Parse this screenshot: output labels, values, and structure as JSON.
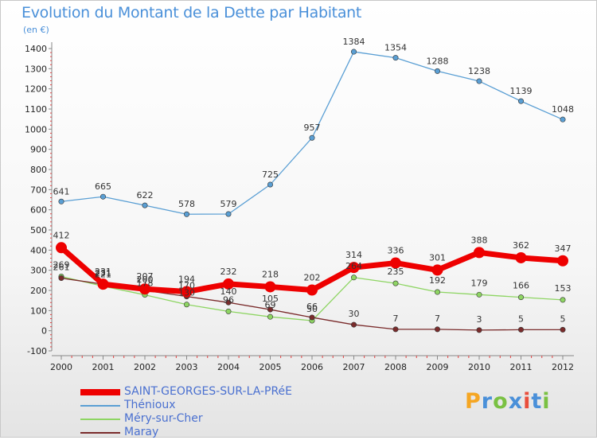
{
  "header": {
    "title": "Evolution du Montant de la Dette par Habitant",
    "unit": "(en €)"
  },
  "logo": {
    "letters": [
      "P",
      "r",
      "o",
      "x",
      "i",
      "t",
      "i"
    ],
    "colors": [
      "#f5a623",
      "#4a90d9",
      "#7ac143",
      "#4a90d9",
      "#e94e3c",
      "#4a90d9",
      "#7ac143"
    ]
  },
  "chart_data": {
    "type": "line",
    "title": "Evolution du Montant de la Dette par Habitant",
    "subtitle": "(en €)",
    "xlabel": "",
    "ylabel": "",
    "x": [
      2000,
      2001,
      2002,
      2003,
      2004,
      2005,
      2006,
      2007,
      2008,
      2009,
      2010,
      2011,
      2012
    ],
    "ylim": [
      -100,
      1400
    ],
    "yticks": [
      -100,
      0,
      100,
      200,
      300,
      400,
      500,
      600,
      700,
      800,
      900,
      1000,
      1100,
      1200,
      1300,
      1400
    ],
    "grid": false,
    "legend_position": "bottom-left",
    "series": [
      {
        "name": "Thénioux",
        "color": "#5a9fd4",
        "values": [
          641,
          665,
          622,
          578,
          579,
          725,
          957,
          1384,
          1354,
          1288,
          1238,
          1139,
          1048
        ]
      },
      {
        "name": "Méry-sur-Cher",
        "color": "#8ed563",
        "values": [
          269,
          221,
          178,
          130,
          96,
          69,
          50,
          264,
          235,
          192,
          179,
          166,
          153
        ]
      },
      {
        "name": "Maray",
        "color": "#7a2b2b",
        "values": [
          261,
          231,
          200,
          170,
          140,
          105,
          66,
          30,
          7,
          7,
          3,
          5,
          5
        ]
      },
      {
        "name": "SAINT-GEORGES-SUR-LA-PRéE",
        "color": "#ee0000",
        "values": [
          412,
          231,
          207,
          194,
          232,
          218,
          202,
          314,
          336,
          301,
          388,
          362,
          347
        ]
      }
    ],
    "legend_order": [
      "SAINT-GEORGES-SUR-LA-PRéE",
      "Thénioux",
      "Méry-sur-Cher",
      "Maray"
    ]
  }
}
